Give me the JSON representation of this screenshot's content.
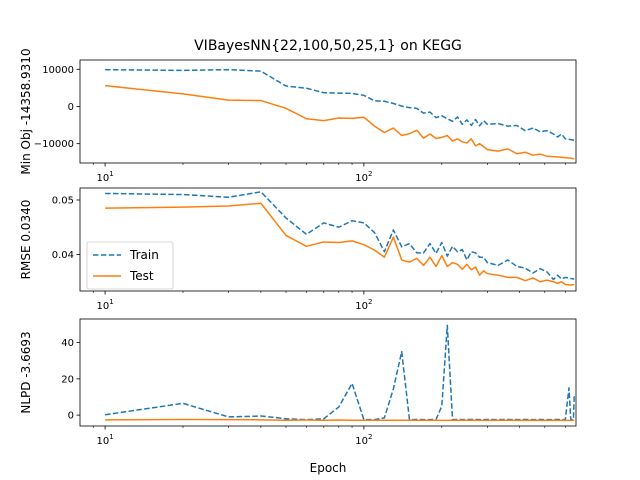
{
  "chart_data": {
    "type": "line",
    "title": "VIBayesNN{22,100,50,25,1} on KEGG",
    "xlabel": "Epoch",
    "xscale": "log",
    "xlim": [
      8.0,
      660
    ],
    "x_ticks": [
      {
        "value": 10,
        "base": "10",
        "exp": "1"
      },
      {
        "value": 100,
        "base": "10",
        "exp": "2"
      }
    ],
    "legend": {
      "entries": [
        "Train",
        "Test"
      ],
      "placement": "lower-left of middle panel"
    },
    "colors": {
      "train": "#1f77b4",
      "test": "#ff7f0e"
    },
    "panels": [
      {
        "ylabel": "Min Obj -14358.9310",
        "ylim": [
          -15200,
          12500
        ],
        "yticks": [
          -10000,
          0,
          10000
        ],
        "ytick_labels": [
          "−10000",
          "0",
          "10000"
        ],
        "series": [
          {
            "name": "Train",
            "style": "dashed",
            "points": [
              [
                10,
                9900
              ],
              [
                20,
                9700
              ],
              [
                30,
                9900
              ],
              [
                40,
                9500
              ],
              [
                50,
                5500
              ],
              [
                60,
                4900
              ],
              [
                70,
                3700
              ],
              [
                80,
                3600
              ],
              [
                90,
                3500
              ],
              [
                100,
                3000
              ],
              [
                110,
                1500
              ],
              [
                120,
                1400
              ],
              [
                130,
                800
              ],
              [
                140,
                100
              ],
              [
                150,
                -300
              ],
              [
                160,
                -500
              ],
              [
                170,
                -1800
              ],
              [
                180,
                -1500
              ],
              [
                190,
                -3000
              ],
              [
                200,
                -2500
              ],
              [
                210,
                -3300
              ],
              [
                220,
                -4000
              ],
              [
                230,
                -2800
              ],
              [
                240,
                -4800
              ],
              [
                250,
                -3600
              ],
              [
                260,
                -5100
              ],
              [
                270,
                -3500
              ],
              [
                280,
                -5200
              ],
              [
                290,
                -3800
              ],
              [
                300,
                -4800
              ],
              [
                330,
                -4600
              ],
              [
                360,
                -5300
              ],
              [
                390,
                -5100
              ],
              [
                420,
                -6500
              ],
              [
                450,
                -5800
              ],
              [
                480,
                -6800
              ],
              [
                510,
                -6500
              ],
              [
                540,
                -7400
              ],
              [
                560,
                -8200
              ],
              [
                580,
                -7400
              ],
              [
                600,
                -8700
              ],
              [
                630,
                -8900
              ],
              [
                650,
                -9100
              ]
            ]
          },
          {
            "name": "Test",
            "style": "solid",
            "points": [
              [
                10,
                5600
              ],
              [
                20,
                3400
              ],
              [
                30,
                1700
              ],
              [
                40,
                1600
              ],
              [
                50,
                -500
              ],
              [
                60,
                -3300
              ],
              [
                70,
                -3800
              ],
              [
                80,
                -3100
              ],
              [
                90,
                -3200
              ],
              [
                100,
                -2900
              ],
              [
                110,
                -5300
              ],
              [
                120,
                -7000
              ],
              [
                130,
                -5800
              ],
              [
                140,
                -7800
              ],
              [
                150,
                -7300
              ],
              [
                160,
                -6400
              ],
              [
                170,
                -8500
              ],
              [
                180,
                -7400
              ],
              [
                190,
                -8600
              ],
              [
                200,
                -8300
              ],
              [
                210,
                -7800
              ],
              [
                220,
                -9300
              ],
              [
                230,
                -8700
              ],
              [
                240,
                -9500
              ],
              [
                250,
                -9800
              ],
              [
                260,
                -8700
              ],
              [
                270,
                -10600
              ],
              [
                280,
                -10000
              ],
              [
                290,
                -10800
              ],
              [
                300,
                -11600
              ],
              [
                330,
                -12000
              ],
              [
                360,
                -11400
              ],
              [
                390,
                -12700
              ],
              [
                420,
                -12300
              ],
              [
                450,
                -13100
              ],
              [
                480,
                -12800
              ],
              [
                510,
                -13400
              ],
              [
                540,
                -13500
              ],
              [
                570,
                -13600
              ],
              [
                600,
                -13800
              ],
              [
                630,
                -13900
              ],
              [
                650,
                -14100
              ]
            ]
          }
        ]
      },
      {
        "ylabel": "RMSE 0.0340",
        "ylim": [
          0.0333,
          0.0522
        ],
        "yticks": [
          0.04,
          0.05
        ],
        "ytick_labels": [
          "0.04",
          "0.05"
        ],
        "series": [
          {
            "name": "Train",
            "style": "dashed",
            "points": [
              [
                10,
                0.0512
              ],
              [
                20,
                0.051
              ],
              [
                30,
                0.0505
              ],
              [
                40,
                0.0515
              ],
              [
                50,
                0.0467
              ],
              [
                60,
                0.0437
              ],
              [
                70,
                0.0458
              ],
              [
                80,
                0.045
              ],
              [
                90,
                0.0462
              ],
              [
                100,
                0.0458
              ],
              [
                110,
                0.044
              ],
              [
                120,
                0.0405
              ],
              [
                130,
                0.0445
              ],
              [
                140,
                0.0414
              ],
              [
                150,
                0.042
              ],
              [
                160,
                0.0403
              ],
              [
                170,
                0.0403
              ],
              [
                180,
                0.042
              ],
              [
                190,
                0.0402
              ],
              [
                200,
                0.0422
              ],
              [
                210,
                0.0397
              ],
              [
                220,
                0.0415
              ],
              [
                230,
                0.0405
              ],
              [
                240,
                0.0409
              ],
              [
                250,
                0.039
              ],
              [
                260,
                0.0405
              ],
              [
                270,
                0.0403
              ],
              [
                280,
                0.0395
              ],
              [
                290,
                0.0395
              ],
              [
                300,
                0.0385
              ],
              [
                330,
                0.038
              ],
              [
                360,
                0.039
              ],
              [
                390,
                0.0378
              ],
              [
                420,
                0.0375
              ],
              [
                450,
                0.0366
              ],
              [
                480,
                0.0374
              ],
              [
                510,
                0.0368
              ],
              [
                540,
                0.0354
              ],
              [
                560,
                0.0362
              ],
              [
                580,
                0.0355
              ],
              [
                600,
                0.0358
              ],
              [
                630,
                0.0356
              ],
              [
                650,
                0.0355
              ]
            ]
          },
          {
            "name": "Test",
            "style": "solid",
            "points": [
              [
                10,
                0.0485
              ],
              [
                20,
                0.0487
              ],
              [
                30,
                0.0489
              ],
              [
                40,
                0.0494
              ],
              [
                50,
                0.0435
              ],
              [
                60,
                0.0415
              ],
              [
                70,
                0.0423
              ],
              [
                80,
                0.0422
              ],
              [
                90,
                0.0425
              ],
              [
                100,
                0.0418
              ],
              [
                110,
                0.0408
              ],
              [
                120,
                0.0395
              ],
              [
                130,
                0.0432
              ],
              [
                140,
                0.039
              ],
              [
                150,
                0.0386
              ],
              [
                160,
                0.0393
              ],
              [
                170,
                0.038
              ],
              [
                180,
                0.0395
              ],
              [
                190,
                0.0378
              ],
              [
                200,
                0.0398
              ],
              [
                210,
                0.0378
              ],
              [
                220,
                0.0385
              ],
              [
                230,
                0.0382
              ],
              [
                240,
                0.0373
              ],
              [
                250,
                0.0382
              ],
              [
                260,
                0.0372
              ],
              [
                270,
                0.0377
              ],
              [
                280,
                0.0362
              ],
              [
                290,
                0.037
              ],
              [
                300,
                0.0365
              ],
              [
                330,
                0.0362
              ],
              [
                360,
                0.0358
              ],
              [
                390,
                0.0358
              ],
              [
                420,
                0.0352
              ],
              [
                450,
                0.0357
              ],
              [
                480,
                0.035
              ],
              [
                510,
                0.0353
              ],
              [
                540,
                0.035
              ],
              [
                560,
                0.0347
              ],
              [
                580,
                0.035
              ],
              [
                600,
                0.0345
              ],
              [
                630,
                0.0344
              ],
              [
                650,
                0.0345
              ]
            ]
          }
        ]
      },
      {
        "ylabel": "NLPD -3.6693",
        "ylim": [
          -6,
          53
        ],
        "yticks": [
          0,
          20,
          40
        ],
        "ytick_labels": [
          "0",
          "20",
          "40"
        ],
        "series": [
          {
            "name": "Train",
            "style": "dashed",
            "points": [
              [
                10,
                0.2
              ],
              [
                20,
                6.5
              ],
              [
                30,
                -1.0
              ],
              [
                40,
                -0.5
              ],
              [
                50,
                -2.0
              ],
              [
                60,
                -2.5
              ],
              [
                70,
                -2.0
              ],
              [
                80,
                4.5
              ],
              [
                90,
                17.5
              ],
              [
                100,
                -2.5
              ],
              [
                110,
                -2.5
              ],
              [
                120,
                -1.5
              ],
              [
                130,
                14.5
              ],
              [
                140,
                35.0
              ],
              [
                150,
                -2.5
              ],
              [
                160,
                -2.4
              ],
              [
                170,
                -2.5
              ],
              [
                180,
                -2.5
              ],
              [
                190,
                -2.4
              ],
              [
                200,
                5.0
              ],
              [
                210,
                49.5
              ],
              [
                220,
                -2.5
              ],
              [
                230,
                -2.4
              ],
              [
                240,
                -2.5
              ],
              [
                260,
                -2.4
              ],
              [
                280,
                -2.5
              ],
              [
                300,
                -2.4
              ],
              [
                330,
                -2.5
              ],
              [
                360,
                -2.4
              ],
              [
                390,
                -2.5
              ],
              [
                420,
                -2.4
              ],
              [
                450,
                -2.5
              ],
              [
                480,
                -2.4
              ],
              [
                510,
                -2.5
              ],
              [
                560,
                -2.4
              ],
              [
                600,
                -2.5
              ],
              [
                620,
                15.0
              ],
              [
                630,
                -2.5
              ],
              [
                645,
                -2.4
              ],
              [
                650,
                11.0
              ]
            ]
          },
          {
            "name": "Test",
            "style": "solid",
            "points": [
              [
                10,
                -2.6
              ],
              [
                20,
                -2.4
              ],
              [
                30,
                -2.5
              ],
              [
                40,
                -2.6
              ],
              [
                50,
                -2.8
              ],
              [
                60,
                -2.7
              ],
              [
                70,
                -2.8
              ],
              [
                80,
                -2.7
              ],
              [
                90,
                -2.8
              ],
              [
                100,
                -2.8
              ],
              [
                150,
                -2.8
              ],
              [
                200,
                -2.9
              ],
              [
                250,
                -2.8
              ],
              [
                300,
                -2.9
              ],
              [
                350,
                -2.8
              ],
              [
                400,
                -2.9
              ],
              [
                450,
                -2.8
              ],
              [
                500,
                -2.9
              ],
              [
                550,
                -2.8
              ],
              [
                600,
                -2.9
              ],
              [
                650,
                -2.9
              ]
            ]
          }
        ]
      }
    ]
  }
}
